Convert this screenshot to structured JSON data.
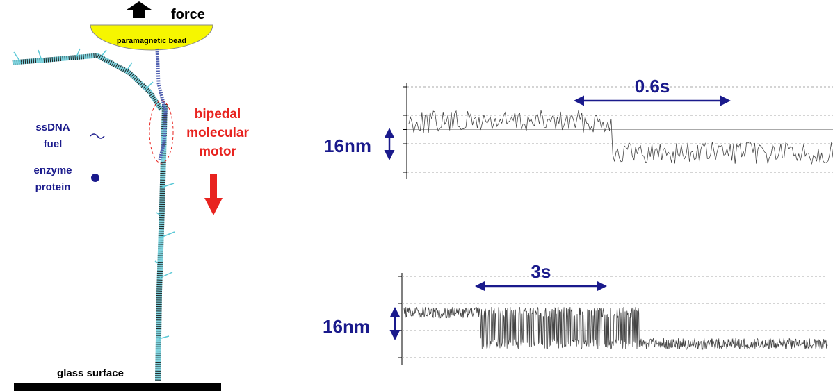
{
  "diagram": {
    "force": "force",
    "bead": "paramagnetic bead",
    "fuel": [
      "ssDNA",
      "fuel"
    ],
    "enzyme": [
      "enzyme",
      "protein"
    ],
    "motor": [
      "bipedal",
      "molecular",
      "motor"
    ],
    "surface": "glass surface"
  },
  "traces": [
    {
      "time_bar": "0.6s",
      "step_bar": "16nm"
    },
    {
      "time_bar": "3s",
      "step_bar": "16nm"
    }
  ]
}
